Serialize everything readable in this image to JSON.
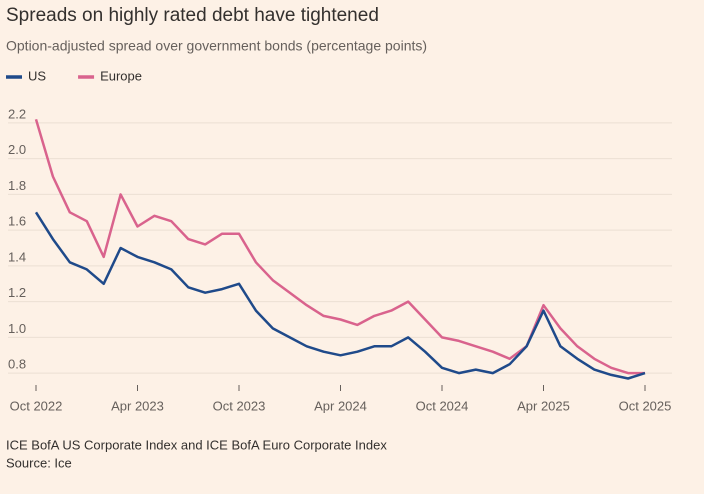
{
  "chart_data": {
    "type": "line",
    "title": "Spreads on highly rated debt have tightened",
    "subtitle": "Option-adjusted spread over government bonds (percentage points)",
    "notes": "ICE BofA US Corporate Index and ICE BofA Euro Corporate Index",
    "source": "Source: Ice",
    "x": [
      "2022-10",
      "2022-11",
      "2022-12",
      "2023-01",
      "2023-02",
      "2023-03",
      "2023-04",
      "2023-05",
      "2023-06",
      "2023-07",
      "2023-08",
      "2023-09",
      "2023-10",
      "2023-11",
      "2023-12",
      "2024-01",
      "2024-02",
      "2024-03",
      "2024-04",
      "2024-05",
      "2024-06",
      "2024-07",
      "2024-08",
      "2024-09",
      "2024-10",
      "2024-11",
      "2024-12",
      "2025-01",
      "2025-02",
      "2025-03",
      "2025-04",
      "2025-05",
      "2025-06",
      "2025-07",
      "2025-08",
      "2025-09",
      "2025-10"
    ],
    "series": [
      {
        "name": "US",
        "color": "#1f4a8a",
        "values": [
          1.7,
          1.55,
          1.42,
          1.38,
          1.3,
          1.5,
          1.45,
          1.42,
          1.38,
          1.28,
          1.25,
          1.27,
          1.3,
          1.15,
          1.05,
          1.0,
          0.95,
          0.92,
          0.9,
          0.92,
          0.95,
          0.95,
          1.0,
          0.92,
          0.83,
          0.8,
          0.82,
          0.8,
          0.85,
          0.95,
          1.15,
          0.95,
          0.88,
          0.82,
          0.79,
          0.77,
          0.8
        ]
      },
      {
        "name": "Europe",
        "color": "#d9638d",
        "values": [
          2.22,
          1.9,
          1.7,
          1.65,
          1.45,
          1.8,
          1.62,
          1.68,
          1.65,
          1.55,
          1.52,
          1.58,
          1.58,
          1.42,
          1.32,
          1.25,
          1.18,
          1.12,
          1.1,
          1.07,
          1.12,
          1.15,
          1.2,
          1.1,
          1.0,
          0.98,
          0.95,
          0.92,
          0.88,
          0.95,
          1.18,
          1.05,
          0.95,
          0.88,
          0.83,
          0.8,
          0.8
        ]
      }
    ],
    "xlim": [
      "2022-10",
      "2025-10"
    ],
    "xticks": [
      {
        "value": "2022-10",
        "label": "Oct 2022"
      },
      {
        "value": "2023-04",
        "label": "Apr 2023"
      },
      {
        "value": "2023-10",
        "label": "Oct 2023"
      },
      {
        "value": "2024-04",
        "label": "Apr 2024"
      },
      {
        "value": "2024-10",
        "label": "Oct 2024"
      },
      {
        "value": "2025-04",
        "label": "Apr 2025"
      },
      {
        "value": "2025-10",
        "label": "Oct 2025"
      }
    ],
    "ylim": [
      0.7,
      2.3
    ],
    "yticks": [
      0.8,
      {
        "value": 1,
        "label": "1.0"
      },
      1.2,
      1.4,
      1.6,
      1.8,
      {
        "value": 2,
        "label": "2.0"
      },
      2.2
    ],
    "grid": true,
    "legend": "top-left"
  }
}
